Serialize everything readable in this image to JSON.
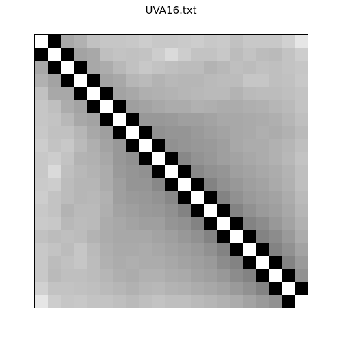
{
  "chart_data": {
    "type": "heatmap",
    "title": "UVA16.txt",
    "xlabel": "",
    "ylabel": "",
    "n_rows": 21,
    "n_cols": 21,
    "colormap": "gray",
    "cell_colors": {
      "diagonal": "#000000",
      "off_diagonal_adjacent": "#ffffff"
    },
    "grid": false,
    "axis_ticks": false,
    "matrix": [
      [
        1.0,
        0.0,
        0.38,
        0.34,
        0.27,
        0.25,
        0.25,
        0.24,
        0.22,
        0.24,
        0.24,
        0.23,
        0.22,
        0.24,
        0.23,
        0.27,
        0.24,
        0.24,
        0.24,
        0.2,
        0.11
      ],
      [
        0.0,
        1.0,
        0.0,
        0.4,
        0.38,
        0.28,
        0.26,
        0.27,
        0.26,
        0.22,
        0.16,
        0.22,
        0.26,
        0.26,
        0.24,
        0.29,
        0.26,
        0.29,
        0.3,
        0.26,
        0.22
      ],
      [
        0.38,
        0.0,
        1.0,
        0.0,
        0.38,
        0.36,
        0.31,
        0.27,
        0.24,
        0.26,
        0.28,
        0.29,
        0.29,
        0.33,
        0.31,
        0.28,
        0.29,
        0.27,
        0.28,
        0.26,
        0.25
      ],
      [
        0.34,
        0.4,
        0.0,
        1.0,
        0.0,
        0.4,
        0.38,
        0.32,
        0.3,
        0.33,
        0.31,
        0.32,
        0.32,
        0.3,
        0.29,
        0.29,
        0.25,
        0.25,
        0.28,
        0.27,
        0.24
      ],
      [
        0.27,
        0.38,
        0.38,
        0.0,
        1.0,
        0.0,
        0.4,
        0.38,
        0.35,
        0.34,
        0.33,
        0.32,
        0.31,
        0.3,
        0.3,
        0.33,
        0.3,
        0.29,
        0.29,
        0.28,
        0.26
      ],
      [
        0.25,
        0.28,
        0.36,
        0.4,
        0.0,
        1.0,
        0.0,
        0.42,
        0.4,
        0.38,
        0.36,
        0.36,
        0.34,
        0.35,
        0.36,
        0.36,
        0.35,
        0.34,
        0.32,
        0.3,
        0.26
      ],
      [
        0.25,
        0.26,
        0.31,
        0.38,
        0.4,
        0.0,
        1.0,
        0.0,
        0.45,
        0.45,
        0.44,
        0.42,
        0.42,
        0.4,
        0.38,
        0.38,
        0.37,
        0.36,
        0.35,
        0.32,
        0.28
      ],
      [
        0.24,
        0.27,
        0.27,
        0.32,
        0.38,
        0.42,
        0.0,
        1.0,
        0.0,
        0.48,
        0.46,
        0.46,
        0.44,
        0.42,
        0.4,
        0.38,
        0.37,
        0.35,
        0.36,
        0.34,
        0.3
      ],
      [
        0.22,
        0.26,
        0.24,
        0.3,
        0.35,
        0.4,
        0.45,
        0.0,
        1.0,
        0.0,
        0.48,
        0.46,
        0.45,
        0.44,
        0.42,
        0.38,
        0.36,
        0.36,
        0.34,
        0.32,
        0.28
      ],
      [
        0.24,
        0.22,
        0.26,
        0.33,
        0.34,
        0.38,
        0.45,
        0.48,
        0.0,
        1.0,
        0.0,
        0.52,
        0.47,
        0.45,
        0.42,
        0.4,
        0.38,
        0.36,
        0.34,
        0.31,
        0.26
      ],
      [
        0.24,
        0.16,
        0.28,
        0.31,
        0.33,
        0.36,
        0.44,
        0.46,
        0.48,
        0.0,
        1.0,
        0.0,
        0.52,
        0.48,
        0.46,
        0.42,
        0.4,
        0.38,
        0.36,
        0.33,
        0.28
      ],
      [
        0.23,
        0.22,
        0.29,
        0.32,
        0.32,
        0.36,
        0.42,
        0.46,
        0.46,
        0.52,
        0.0,
        1.0,
        0.0,
        0.54,
        0.48,
        0.45,
        0.42,
        0.4,
        0.37,
        0.34,
        0.28
      ],
      [
        0.22,
        0.26,
        0.29,
        0.32,
        0.31,
        0.34,
        0.42,
        0.44,
        0.45,
        0.47,
        0.52,
        0.0,
        1.0,
        0.0,
        0.54,
        0.48,
        0.44,
        0.42,
        0.4,
        0.36,
        0.3
      ],
      [
        0.24,
        0.26,
        0.33,
        0.3,
        0.3,
        0.35,
        0.4,
        0.42,
        0.44,
        0.45,
        0.48,
        0.54,
        0.0,
        1.0,
        0.0,
        0.54,
        0.48,
        0.44,
        0.42,
        0.38,
        0.32
      ],
      [
        0.23,
        0.24,
        0.31,
        0.29,
        0.3,
        0.36,
        0.38,
        0.4,
        0.42,
        0.42,
        0.46,
        0.48,
        0.54,
        0.0,
        1.0,
        0.0,
        0.54,
        0.5,
        0.45,
        0.4,
        0.34
      ],
      [
        0.27,
        0.29,
        0.28,
        0.29,
        0.33,
        0.36,
        0.38,
        0.38,
        0.38,
        0.4,
        0.42,
        0.45,
        0.48,
        0.54,
        0.0,
        1.0,
        0.0,
        0.54,
        0.5,
        0.44,
        0.36
      ],
      [
        0.24,
        0.26,
        0.29,
        0.25,
        0.3,
        0.35,
        0.37,
        0.37,
        0.36,
        0.38,
        0.4,
        0.42,
        0.44,
        0.48,
        0.54,
        0.0,
        1.0,
        0.0,
        0.54,
        0.48,
        0.4
      ],
      [
        0.24,
        0.29,
        0.27,
        0.25,
        0.29,
        0.34,
        0.36,
        0.35,
        0.36,
        0.36,
        0.38,
        0.4,
        0.42,
        0.44,
        0.5,
        0.54,
        0.0,
        1.0,
        0.0,
        0.54,
        0.44
      ],
      [
        0.24,
        0.3,
        0.28,
        0.28,
        0.29,
        0.32,
        0.35,
        0.36,
        0.34,
        0.34,
        0.36,
        0.37,
        0.4,
        0.42,
        0.45,
        0.5,
        0.54,
        0.0,
        1.0,
        0.0,
        0.48
      ],
      [
        0.2,
        0.26,
        0.26,
        0.27,
        0.28,
        0.3,
        0.32,
        0.34,
        0.32,
        0.31,
        0.33,
        0.34,
        0.36,
        0.38,
        0.4,
        0.44,
        0.48,
        0.54,
        0.0,
        1.0,
        0.0
      ],
      [
        0.11,
        0.22,
        0.25,
        0.24,
        0.26,
        0.26,
        0.28,
        0.3,
        0.28,
        0.26,
        0.28,
        0.28,
        0.3,
        0.32,
        0.34,
        0.36,
        0.4,
        0.44,
        0.48,
        0.0,
        1.0
      ]
    ]
  }
}
